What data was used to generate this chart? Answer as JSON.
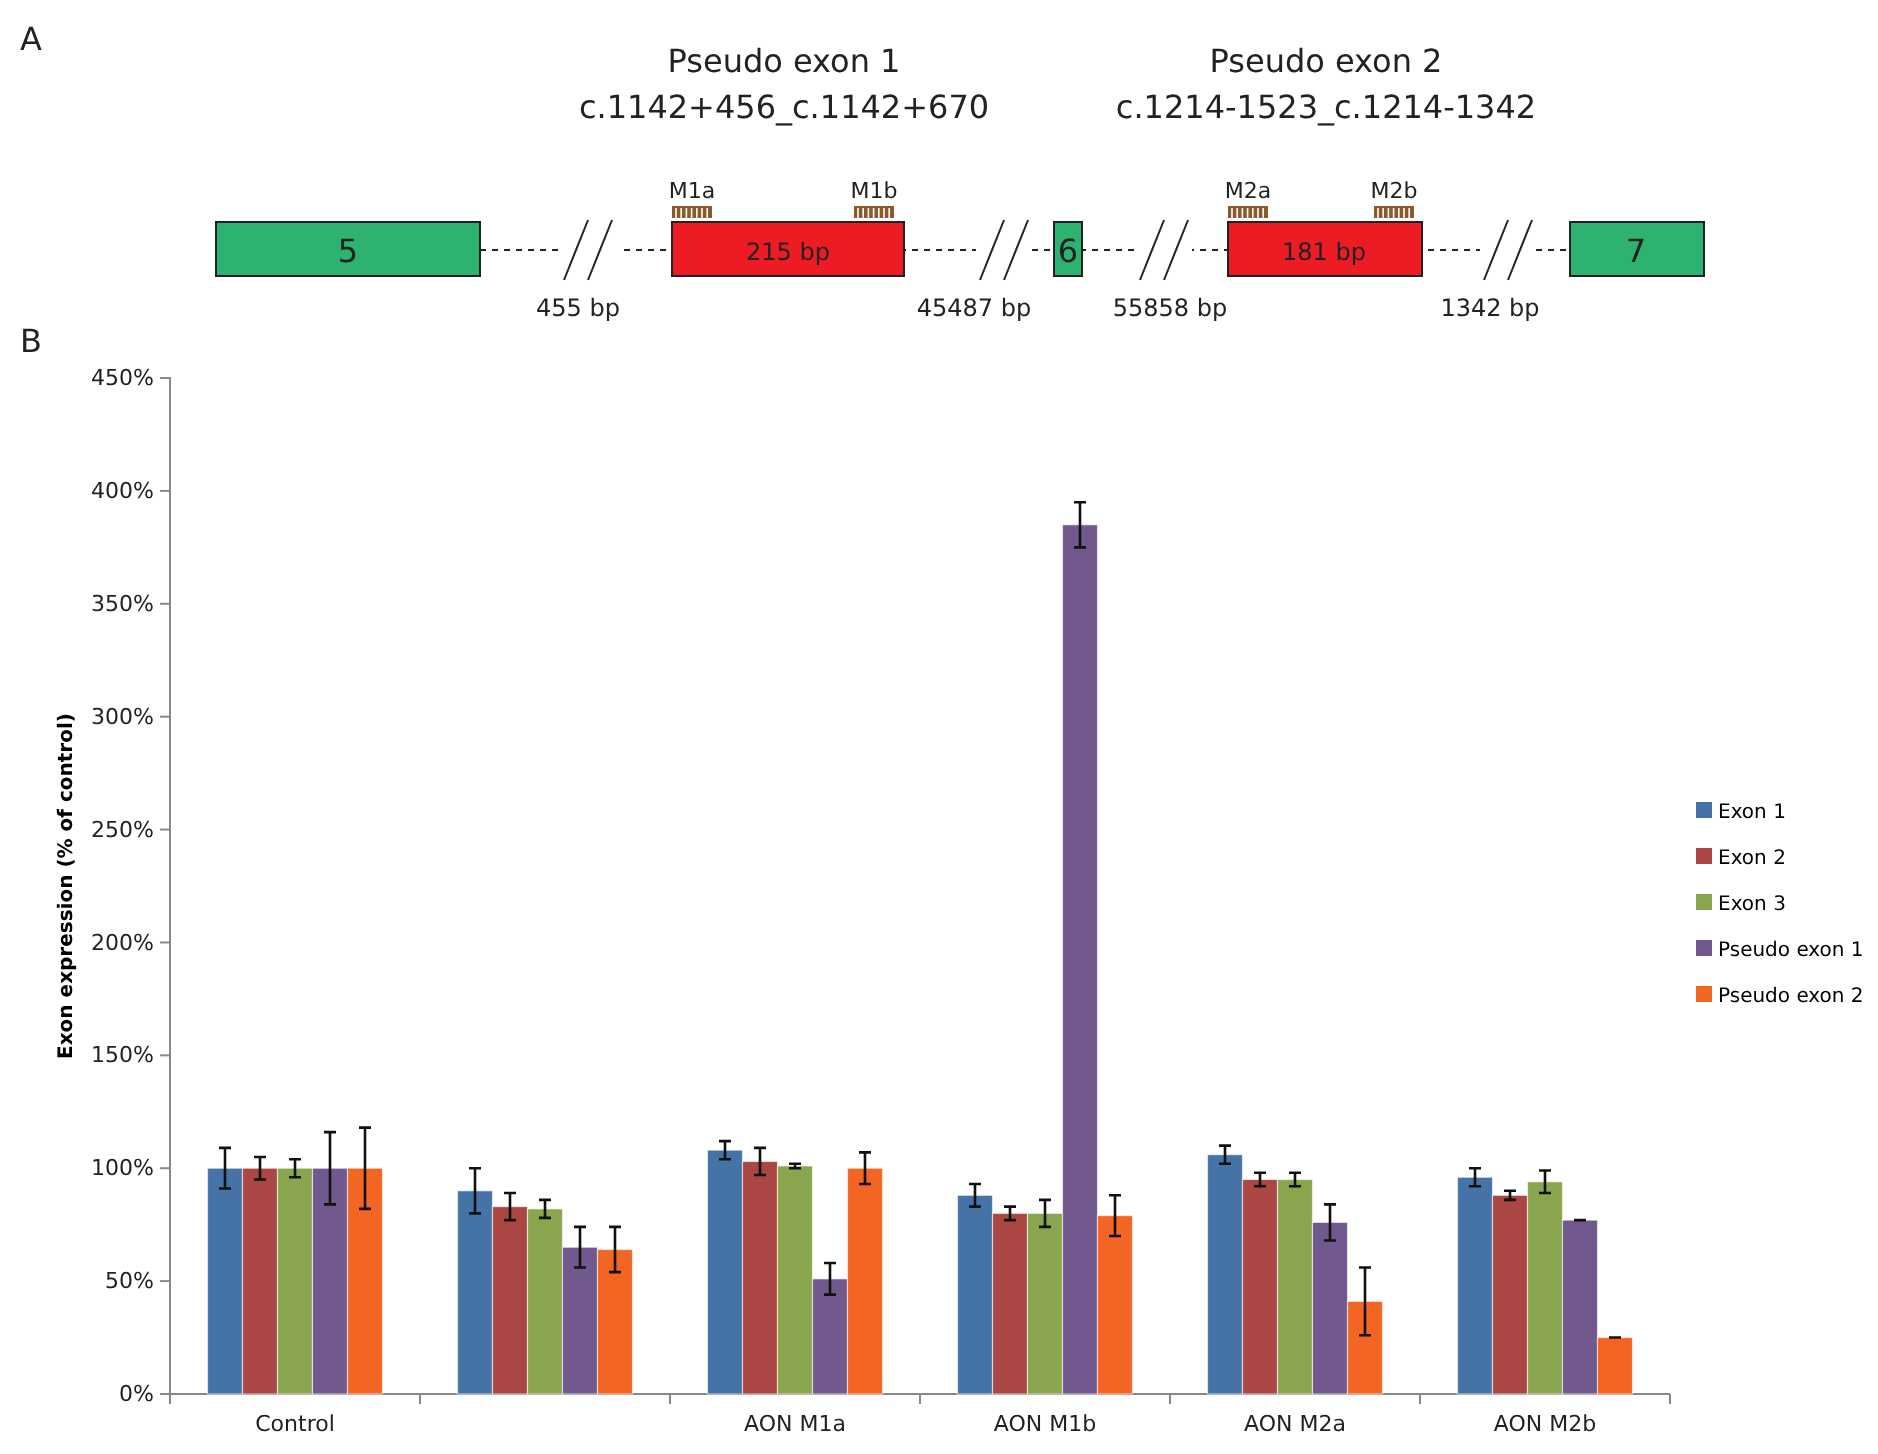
{
  "chart_data": {
    "type": "bar",
    "ylabel": "Exon expression (% of control)",
    "categories": [
      "Control",
      null,
      "AON M1a",
      "AON M1b",
      "AON M2a",
      "AON M2b"
    ],
    "series": [
      {
        "name": "Exon 1",
        "color": "#4572a7",
        "values": [
          100,
          90,
          108,
          88,
          106,
          96
        ],
        "errors": [
          9,
          10,
          4,
          5,
          4,
          4
        ]
      },
      {
        "name": "Exon 2",
        "color": "#aa4643",
        "values": [
          100,
          83,
          103,
          80,
          95,
          88
        ],
        "errors": [
          5,
          6,
          6,
          3,
          3,
          2
        ]
      },
      {
        "name": "Exon 3",
        "color": "#89a54e",
        "values": [
          100,
          82,
          101,
          80,
          95,
          94
        ],
        "errors": [
          4,
          4,
          1,
          6,
          3,
          5
        ]
      },
      {
        "name": "Pseudo exon 1",
        "color": "#71588f",
        "values": [
          100,
          65,
          51,
          385,
          76,
          77
        ],
        "errors": [
          16,
          9,
          7,
          10,
          8,
          0
        ]
      },
      {
        "name": "Pseudo exon 2",
        "color": "#f26522",
        "values": [
          100,
          64,
          100,
          79,
          41,
          25
        ],
        "errors": [
          18,
          10,
          7,
          9,
          15,
          0
        ]
      }
    ],
    "ylim": [
      0,
      450
    ],
    "yticks": [
      {
        "value": 0,
        "label": "0%"
      },
      {
        "value": 50,
        "label": "50%"
      },
      {
        "value": 100,
        "label": "100%"
      },
      {
        "value": 150,
        "label": "150%"
      },
      {
        "value": 200,
        "label": "200%"
      },
      {
        "value": 250,
        "label": "250%"
      },
      {
        "value": 300,
        "label": "300%"
      },
      {
        "value": 350,
        "label": "350%"
      },
      {
        "value": 400,
        "label": "400%"
      },
      {
        "value": 450,
        "label": "450%"
      }
    ],
    "grid": false,
    "legend": "right",
    "annotations": [
      "A",
      "B",
      "Pseudo exon 1",
      "c.1142+456_c.1142+670",
      "Pseudo exon 2",
      "c.1214-1523_c.1214-1342",
      "5",
      "215 bp",
      "6",
      "181 bp",
      "7",
      "M1a",
      "M1b",
      "M2a",
      "M2b",
      "455 bp",
      "45487 bp",
      "55858 bp",
      "1342 bp"
    ]
  }
}
